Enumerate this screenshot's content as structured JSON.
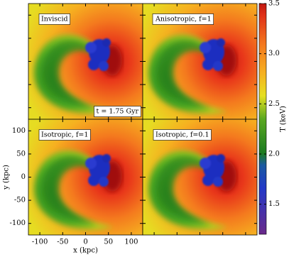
{
  "chart_data": [
    {
      "type": "image",
      "label": "Inviscid",
      "annotation": "t = 1.75 Gyr"
    },
    {
      "type": "image",
      "label": "Anisotropic, f=1"
    },
    {
      "type": "image",
      "label": "Isotropic, f=1",
      "xlabel": "x (kpc)",
      "ylabel": "y (kpc)",
      "xlim": [
        -125,
        125
      ],
      "ylim": [
        -125,
        125
      ],
      "xticks": [
        -100,
        -50,
        0,
        50,
        100
      ],
      "yticks": [
        -100,
        -50,
        0,
        50,
        100
      ]
    },
    {
      "type": "image",
      "label": "Isotropic, f=0.1"
    },
    {
      "type": "colorbar",
      "ylabel": "T (keV)",
      "ylim": [
        1.2,
        3.5
      ],
      "yticks": [
        1.5,
        {
          "value": 2,
          "label": "2.0"
        },
        2.5,
        {
          "value": 3,
          "label": "3.0"
        },
        3.5
      ]
    }
  ]
}
